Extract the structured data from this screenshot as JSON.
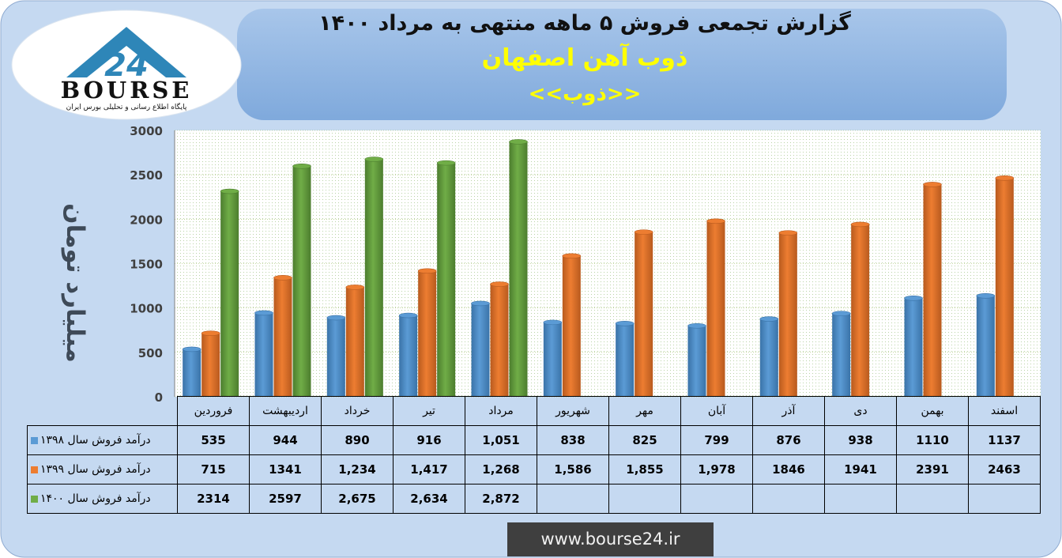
{
  "header": {
    "title": "گزارش تجمعی فروش ۵ ماهه منتهی به مرداد ۱۴۰۰",
    "company": "ذوب آهن اصفهان",
    "symbol": "<<ذوب>>"
  },
  "logo": {
    "word": "BOURSE",
    "number": "24",
    "tagline": "پایگاه اطلاع رسانی و تحلیلی بورس ایران"
  },
  "footer": {
    "url": "www.bourse24.ir"
  },
  "colors": {
    "series_1398": "#5b9bd5",
    "series_1399": "#ed7d31",
    "series_1400": "#70ad47",
    "frame_background": "#c5d9f1",
    "header_background": "#8db4e2"
  },
  "chart_data": {
    "type": "bar",
    "ylabel": "میلیارد تومان",
    "ylim": [
      0,
      3000
    ],
    "yticks": [
      "0",
      "500",
      "1000",
      "1500",
      "2000",
      "2500",
      "3000"
    ],
    "grid": true,
    "legend": "table-rows",
    "categories": [
      "فروردین",
      "اردیبهشت",
      "خرداد",
      "تیر",
      "مرداد",
      "شهریور",
      "مهر",
      "آبان",
      "آذر",
      "دی",
      "بهمن",
      "اسفند"
    ],
    "series": [
      {
        "name": "درآمد فروش سال ۱۳۹۸",
        "values": [
          535,
          944,
          890,
          916,
          1051,
          838,
          825,
          799,
          876,
          938,
          1110,
          1137
        ],
        "labels": [
          "535",
          "944",
          "890",
          "916",
          "1,051",
          "838",
          "825",
          "799",
          "876",
          "938",
          "1110",
          "1137"
        ]
      },
      {
        "name": "درآمد فروش سال ۱۳۹۹",
        "values": [
          715,
          1341,
          1234,
          1417,
          1268,
          1586,
          1855,
          1978,
          1846,
          1941,
          2391,
          2463
        ],
        "labels": [
          "715",
          "1341",
          "1,234",
          "1,417",
          "1,268",
          "1,586",
          "1,855",
          "1,978",
          "1846",
          "1941",
          "2391",
          "2463"
        ]
      },
      {
        "name": "درآمد فروش سال ۱۴۰۰",
        "values": [
          2314,
          2597,
          2675,
          2634,
          2872,
          null,
          null,
          null,
          null,
          null,
          null,
          null
        ],
        "labels": [
          "2314",
          "2597",
          "2,675",
          "2,634",
          "2,872",
          "",
          "",
          "",
          "",
          "",
          "",
          ""
        ]
      }
    ]
  }
}
